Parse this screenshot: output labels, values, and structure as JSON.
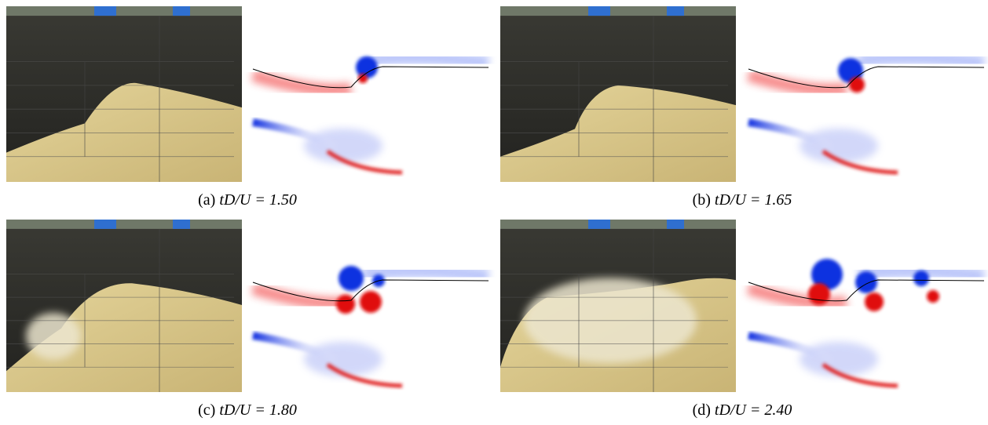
{
  "figure": {
    "panels": [
      {
        "label": "(a)",
        "equation": "tD/U = 1.50"
      },
      {
        "label": "(b)",
        "equation": "tD/U = 1.65"
      },
      {
        "label": "(c)",
        "equation": "tD/U = 1.80"
      },
      {
        "label": "(d)",
        "equation": "tD/U = 2.40"
      }
    ]
  }
}
